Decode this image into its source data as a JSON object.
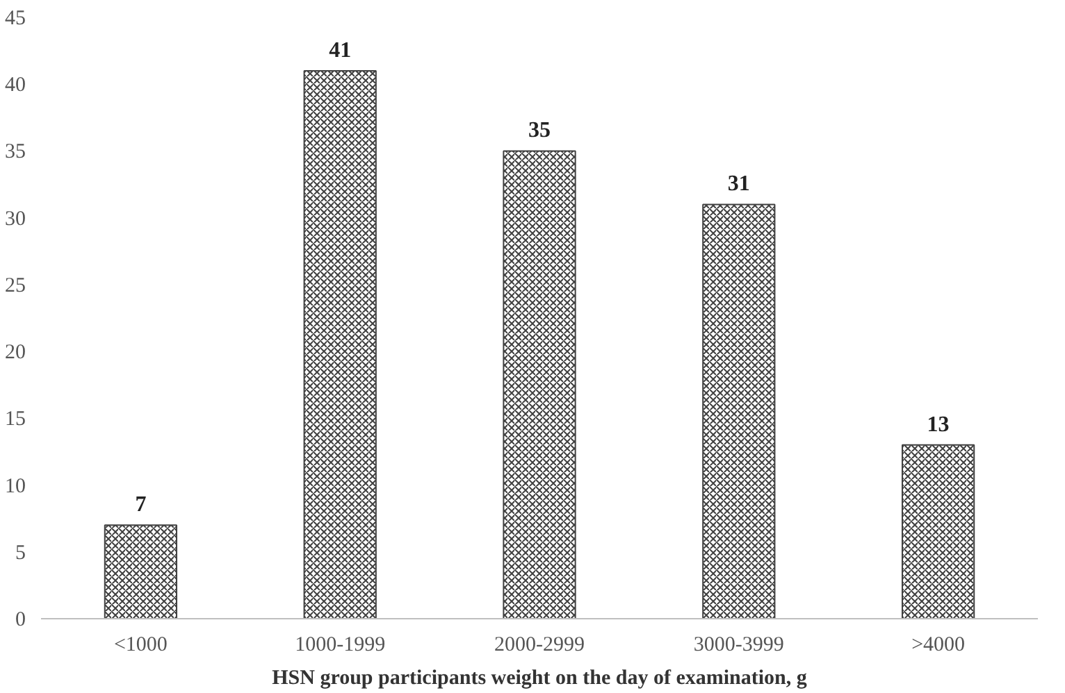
{
  "chart_data": {
    "type": "bar",
    "xlabel": "HSN group participants weight on the day of examination, g",
    "categories": [
      "<1000",
      "1000-1999",
      "2000-2999",
      "3000-3999",
      ">4000"
    ],
    "values": [
      7,
      41,
      35,
      31,
      13
    ],
    "color": "#404040",
    "ylim": [
      0,
      45
    ],
    "yticks": [
      0,
      5,
      10,
      15,
      20,
      25,
      30,
      35,
      40,
      45
    ],
    "grid": false,
    "data_labels": true
  }
}
